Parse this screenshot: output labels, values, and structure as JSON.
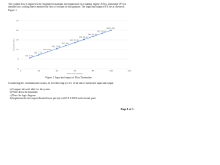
{
  "intro": "The coolant flow is required to be regulated to maintain the temperature of a running engine. A flow transmitter (FT) is installed on a cooling line to monitor the flow of coolant for this purpose. The input and output of FT are as shown in Figure 1.",
  "chart_data": {
    "type": "line",
    "x_label": "Flow rate (cc/sec)",
    "y_label": "Current (mA)",
    "x": [
      10,
      20,
      30,
      40,
      50,
      60,
      70,
      80,
      90,
      100
    ],
    "series": [
      {
        "color": "#4472c4",
        "values": [
          5.6,
          7.2,
          8.8,
          10.4,
          12,
          13.6,
          15.2,
          16.8,
          18.4,
          20
        ],
        "value_labels": [
          "(10, 5.6)",
          "(20, 7.2)",
          "(30, 8.8)",
          "(40, 10.4)",
          "(50, 12)",
          "(60, 13.6)",
          "(70, 15.2)",
          "(80, 16.8)",
          "(90, 18.4)",
          "(100, 20)"
        ]
      }
    ],
    "xlim": [
      0,
      120
    ],
    "xticks": [
      0,
      20,
      40,
      60,
      80,
      100,
      120
    ],
    "ylim": [
      0,
      25
    ],
    "yticks": [
      0,
      5,
      10,
      15,
      20,
      25
    ],
    "grid": true
  },
  "caption": "Figure 1: Input and output of Flow Transmitter",
  "question": "Considering the combinational circuits, do the following in view of the above-mentioned input and output:",
  "items": [
    "a) Compute the truth table for the system",
    "b) Write down the equations",
    "c) Draw the logic diagram",
    "d) Implement the last output obtained from part (a) with 8 X 1 MUX and external gates"
  ],
  "footer": "Page 1 of 3"
}
